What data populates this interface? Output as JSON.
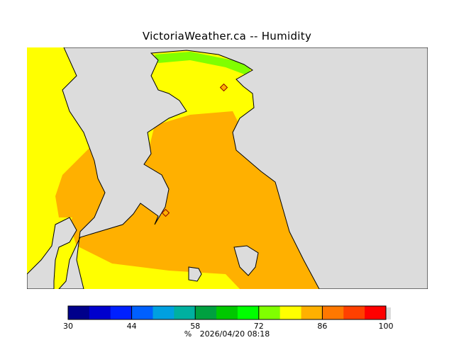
{
  "title": "VictoriaWeather.ca -- Humidity",
  "legend": {
    "min": 30,
    "max": 100,
    "step": 5,
    "colors": [
      "#00008b",
      "#0000cd",
      "#0020ff",
      "#0060ff",
      "#00a0e0",
      "#00b0a0",
      "#00a040",
      "#00c800",
      "#00ff00",
      "#80ff00",
      "#ffff00",
      "#ffb000",
      "#ff7800",
      "#ff4000",
      "#ff0000"
    ],
    "tick_labels": [
      "30",
      "44",
      "58",
      "72",
      "86",
      "100"
    ],
    "unit": "%",
    "timestamp": "2026/04/20 08:18"
  },
  "map": {
    "land_color": "#dcdcdc",
    "station_icon": "diamond-icon",
    "colors": {
      "high_band": "#ffb000",
      "mid_band": "#ffff00",
      "low_band": "#80ff00"
    }
  }
}
